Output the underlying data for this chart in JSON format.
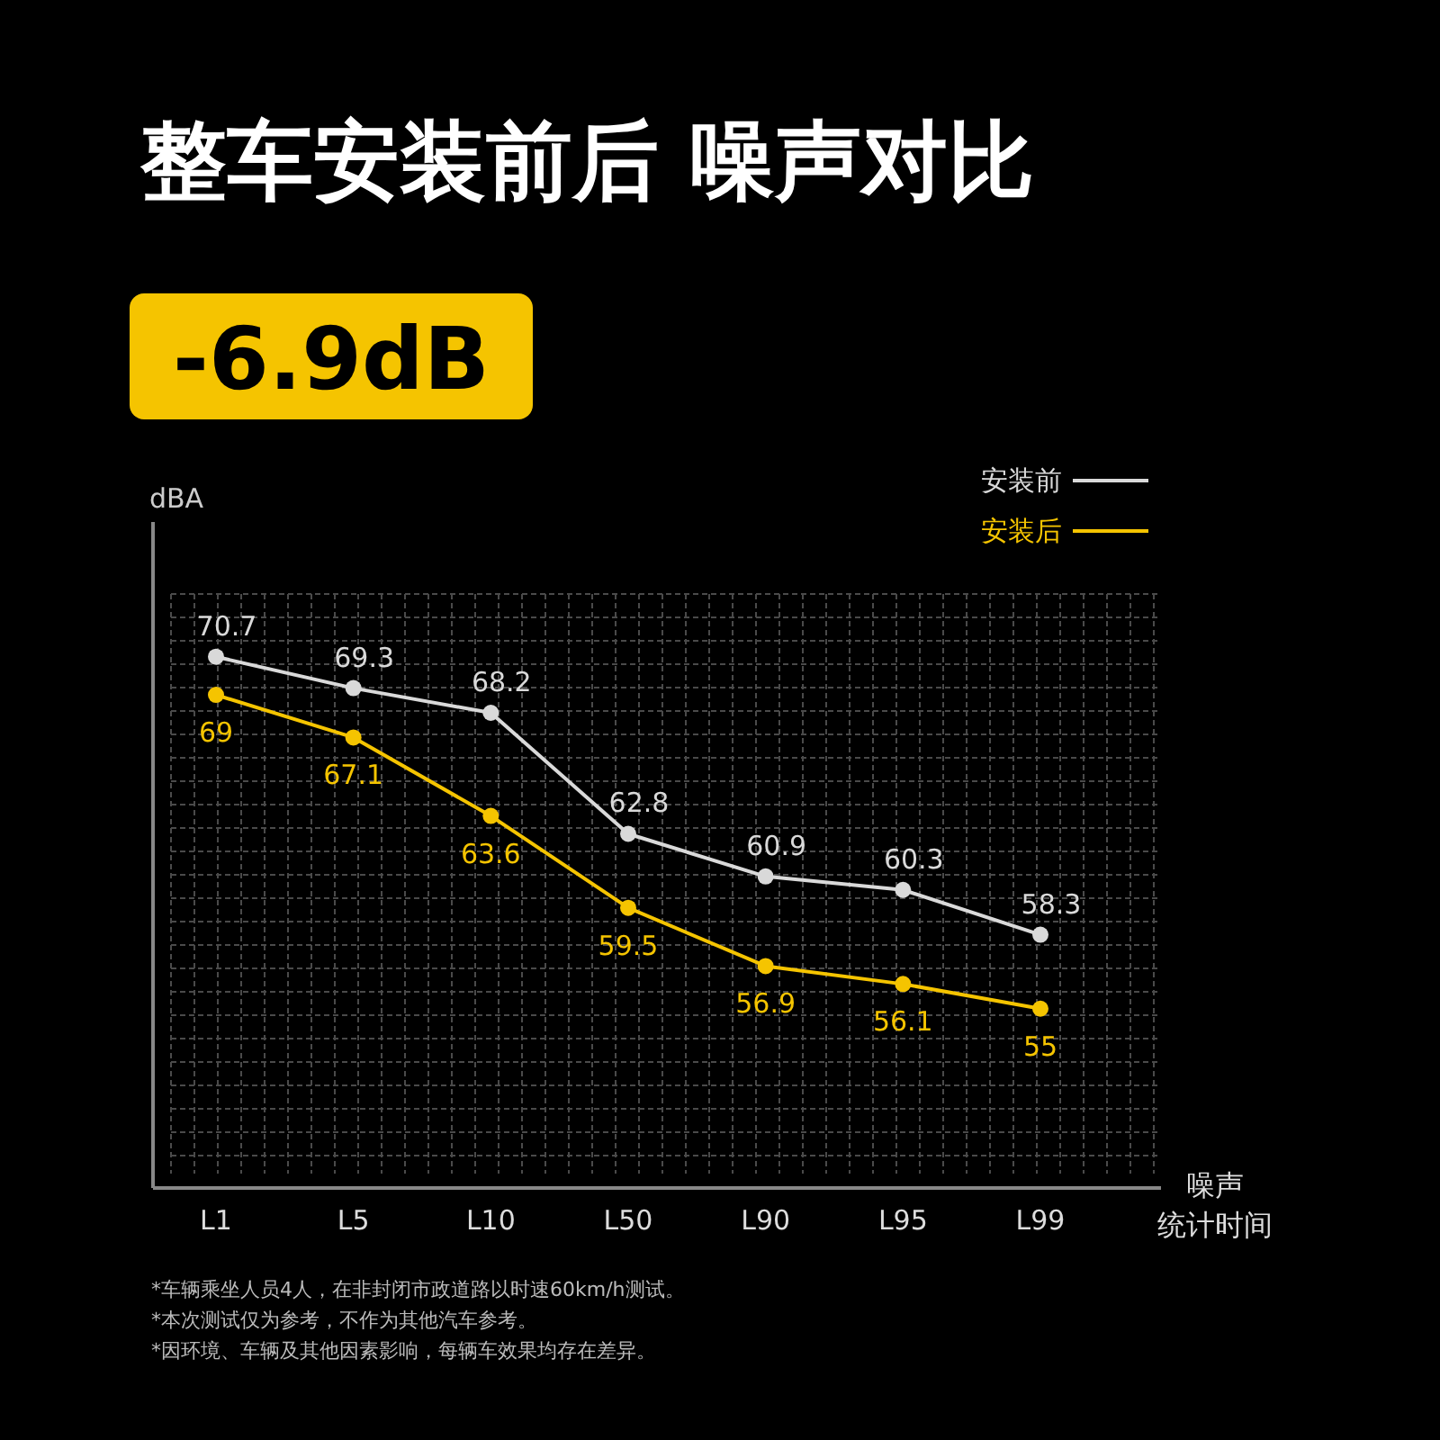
{
  "chart_data": {
    "type": "line",
    "title": "整车安装前后 噪声对比",
    "subtitle": "-6.9dB",
    "ylabel": "dBA",
    "xlabel": "噪声统计时间",
    "categories": [
      "L1",
      "L5",
      "L10",
      "L50",
      "L90",
      "L95",
      "L99"
    ],
    "series": [
      {
        "name": "安装前",
        "color": "#d9d9d9",
        "values": [
          70.7,
          69.3,
          68.2,
          62.8,
          60.9,
          60.3,
          58.3
        ]
      },
      {
        "name": "安装后",
        "color": "#f5c400",
        "values": [
          69,
          67.1,
          63.6,
          59.5,
          56.9,
          56.1,
          55
        ]
      }
    ],
    "ylim": [
      47,
      73.5
    ],
    "data_labels": true,
    "grid": true,
    "legend": "top right",
    "marker": "circle",
    "line_style": "solid",
    "annotations": [
      "*车辆乘坐人员4人，在非封闭市政道路以时速60km/h测试。",
      "*本次测试仅为参考，不作为其他汽车参考。",
      "*因环境、车辆及其他因素影响，每辆车效果均存在差异。"
    ]
  }
}
